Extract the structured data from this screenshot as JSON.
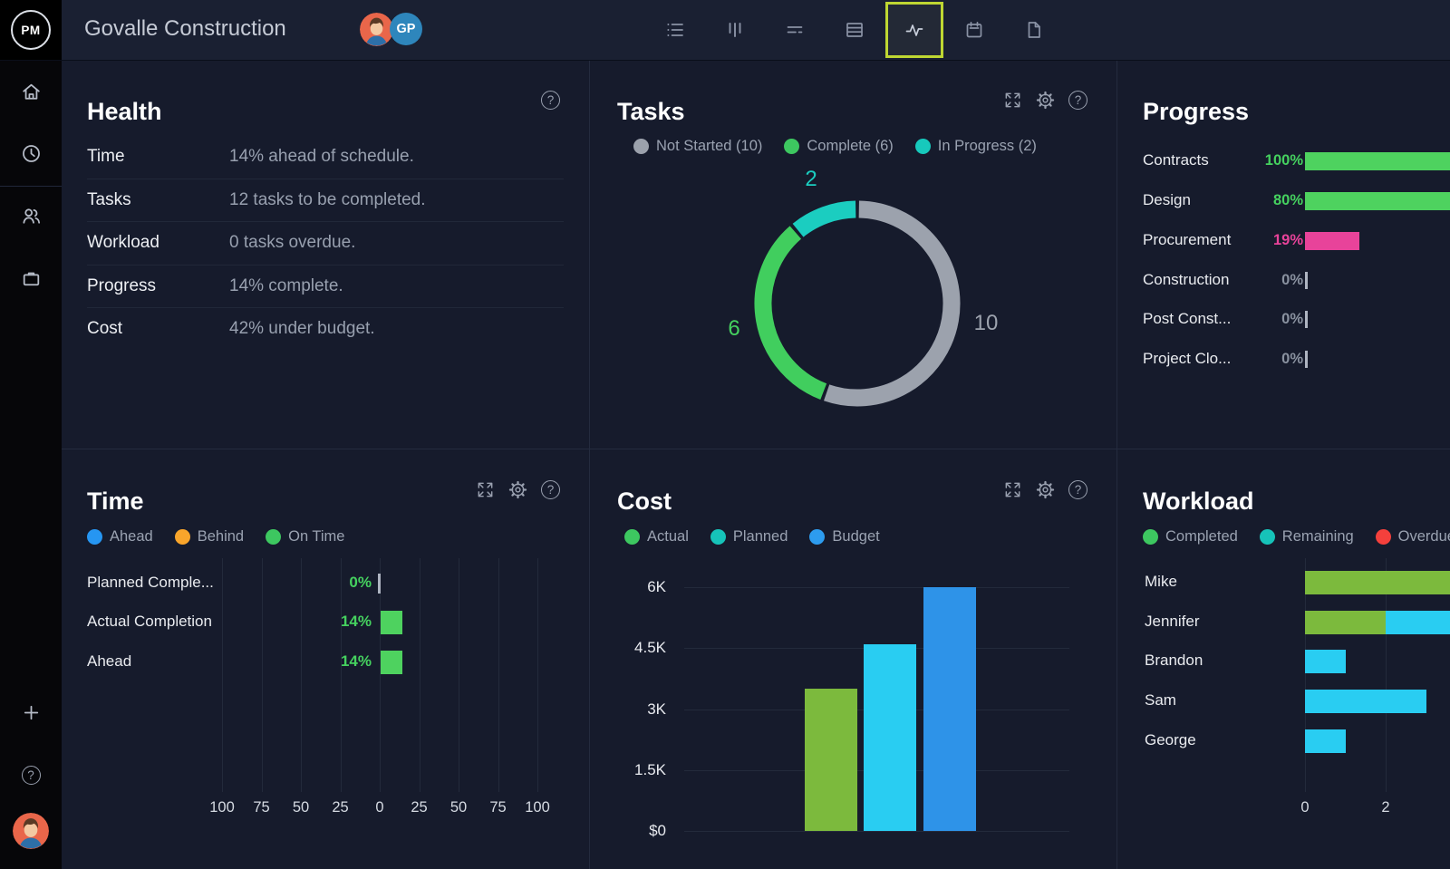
{
  "topbar": {
    "logo_text": "PM",
    "title": "Govalle Construction",
    "avatar_badge": "GP",
    "toolbar": [
      {
        "name": "list-view-icon",
        "active": false
      },
      {
        "name": "board-view-icon",
        "active": false
      },
      {
        "name": "gantt-view-icon",
        "active": false
      },
      {
        "name": "sheet-view-icon",
        "active": false
      },
      {
        "name": "dashboard-view-icon",
        "active": true
      },
      {
        "name": "calendar-view-icon",
        "active": false
      },
      {
        "name": "docs-view-icon",
        "active": false
      }
    ]
  },
  "sidebar": {
    "top_items": [
      {
        "name": "home-icon"
      },
      {
        "name": "recent-icon"
      }
    ],
    "mid_items": [
      {
        "name": "team-icon"
      },
      {
        "name": "portfolio-icon"
      }
    ],
    "bottom_items": [
      {
        "name": "add-icon"
      },
      {
        "name": "help-icon"
      }
    ]
  },
  "colors": {
    "green": "#45d15f",
    "yellow_green": "#7cba3d",
    "cyan": "#29cdf2",
    "teal_dot": "#16c3b9",
    "blue": "#2e93e8",
    "blue_dot": "#2696f2",
    "orange": "#f9a52b",
    "red": "#f4403c",
    "pink": "#e8439a",
    "grey": "#9ca2ad",
    "highlight_border": "#bfd732"
  },
  "panels": {
    "health": {
      "title": "Health",
      "header_icons": [
        "help-icon"
      ],
      "rows": [
        {
          "label": "Time",
          "value": "14% ahead of schedule."
        },
        {
          "label": "Tasks",
          "value": "12 tasks to be completed."
        },
        {
          "label": "Workload",
          "value": "0 tasks overdue."
        },
        {
          "label": "Progress",
          "value": "14% complete."
        },
        {
          "label": "Cost",
          "value": "42% under budget."
        }
      ]
    },
    "tasks": {
      "title": "Tasks",
      "header_icons": [
        "expand-icon",
        "settings-icon",
        "help-icon"
      ],
      "legend": [
        {
          "label": "Not Started (10)",
          "color": "#9ba1ac"
        },
        {
          "label": "Complete (6)",
          "color": "#3dc760"
        },
        {
          "label": "In Progress (2)",
          "color": "#17c9bc"
        }
      ],
      "chart_data": {
        "type": "pie",
        "subtype": "donut",
        "title": "Tasks",
        "total": 18,
        "segments": [
          {
            "label": "Not Started",
            "value": 10,
            "display": "10",
            "color": "#9ca2ad",
            "label_color": "#9ca2ad"
          },
          {
            "label": "Complete",
            "value": 6,
            "display": "6",
            "color": "#41ce5e",
            "label_color": "#45d15f"
          },
          {
            "label": "In Progress",
            "value": 2,
            "display": "2",
            "color": "#1bcdc0",
            "label_color": "#1bcdc0"
          }
        ]
      }
    },
    "progress": {
      "title": "Progress",
      "chart_data": {
        "type": "bar",
        "orientation": "horizontal",
        "xlim": [
          0,
          100
        ],
        "rows": [
          {
            "label": "Contracts",
            "pct": "100%",
            "value": 100,
            "color": "#4ed25f",
            "text_color": "#45d15f"
          },
          {
            "label": "Design",
            "pct": "80%",
            "value": 80,
            "color": "#4ed25f",
            "text_color": "#45d15f"
          },
          {
            "label": "Procurement",
            "pct": "19%",
            "value": 19,
            "color": "#e8439a",
            "text_color": "#e8439a"
          },
          {
            "label": "Construction",
            "pct": "0%",
            "value": 0,
            "color": "#8e95a3",
            "text_color": "#8a92a0"
          },
          {
            "label": "Post Const...",
            "pct": "0%",
            "value": 0,
            "color": "#8e95a3",
            "text_color": "#8a92a0"
          },
          {
            "label": "Project Clo...",
            "pct": "0%",
            "value": 0,
            "color": "#8e95a3",
            "text_color": "#8a92a0"
          }
        ]
      }
    },
    "time": {
      "title": "Time",
      "header_icons": [
        "expand-icon",
        "settings-icon",
        "help-icon"
      ],
      "legend": [
        {
          "label": "Ahead",
          "color": "#2696f2"
        },
        {
          "label": "Behind",
          "color": "#f9a52b"
        },
        {
          "label": "On Time",
          "color": "#3dc760"
        }
      ],
      "chart_data": {
        "type": "bar",
        "orientation": "horizontal",
        "xlim": [
          -100,
          100
        ],
        "x_ticks": [
          "100",
          "75",
          "50",
          "25",
          "0",
          "25",
          "50",
          "75",
          "100"
        ],
        "rows": [
          {
            "label": "Planned Comple...",
            "display": "0%",
            "value": 0
          },
          {
            "label": "Actual Completion",
            "display": "14%",
            "value": 14
          },
          {
            "label": "Ahead",
            "display": "14%",
            "value": 14
          }
        ],
        "bar_color": "#4ed25f",
        "value_color": "#45d15f"
      }
    },
    "cost": {
      "title": "Cost",
      "header_icons": [
        "expand-icon",
        "settings-icon",
        "help-icon"
      ],
      "legend": [
        {
          "label": "Actual",
          "color": "#3dc760"
        },
        {
          "label": "Planned",
          "color": "#16c3b9"
        },
        {
          "label": "Budget",
          "color": "#2d9cef"
        }
      ],
      "chart_data": {
        "type": "bar",
        "orientation": "vertical",
        "ylim": [
          0,
          6000
        ],
        "y_ticks": [
          "6K",
          "4.5K",
          "3K",
          "1.5K",
          "$0"
        ],
        "series": [
          {
            "name": "Actual",
            "value": 3500,
            "color": "#7cba3d"
          },
          {
            "name": "Planned",
            "value": 4600,
            "color": "#29cdf2"
          },
          {
            "name": "Budget",
            "value": 6000,
            "color": "#2e93e8"
          }
        ]
      }
    },
    "workload": {
      "title": "Workload",
      "legend": [
        {
          "label": "Completed",
          "color": "#3dc760"
        },
        {
          "label": "Remaining",
          "color": "#16c3b9"
        },
        {
          "label": "Overdue",
          "color": "#f4403c"
        }
      ],
      "chart_data": {
        "type": "bar",
        "orientation": "horizontal-stacked",
        "x_ticks": [
          "0",
          "2"
        ],
        "colors": {
          "completed": "#7cba3d",
          "remaining": "#29cdf2"
        },
        "rows": [
          {
            "name": "Mike",
            "completed": 4,
            "remaining": 0,
            "clipped": true
          },
          {
            "name": "Jennifer",
            "completed": 2,
            "remaining": 2,
            "clipped": true
          },
          {
            "name": "Brandon",
            "completed": 0,
            "remaining": 1
          },
          {
            "name": "Sam",
            "completed": 0,
            "remaining": 3
          },
          {
            "name": "George",
            "completed": 0,
            "remaining": 1
          }
        ]
      }
    }
  }
}
